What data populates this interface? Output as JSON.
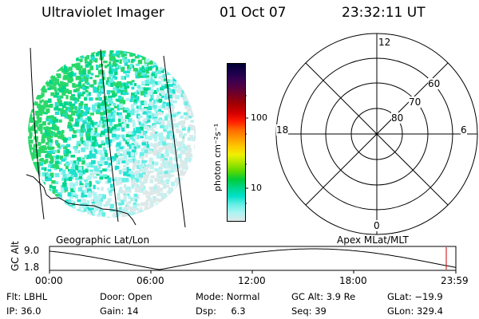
{
  "header": {
    "instrument": "Ultraviolet Imager",
    "date": "01 Oct 07",
    "time": "23:32:11 UT"
  },
  "colorbar": {
    "unit_label": "photon cm⁻²s⁻¹",
    "ticks": [
      "100",
      "10"
    ],
    "colors": [
      "#000033",
      "#1a004a",
      "#3a0050",
      "#5a003c",
      "#80001a",
      "#a80000",
      "#d60000",
      "#ff1e00",
      "#ff6a00",
      "#ff9a00",
      "#ffc800",
      "#f0f000",
      "#a8e600",
      "#5ad800",
      "#00cc3a",
      "#00d68a",
      "#00e0c8",
      "#66eee6",
      "#aaf4f2",
      "#dde8e8"
    ]
  },
  "polar_grid": {
    "mlt_labels": [
      "12",
      "18",
      "6",
      "0"
    ],
    "mlat_labels": [
      "60",
      "70",
      "80"
    ]
  },
  "panel_labels": {
    "left": "Geographic Lat/Lon",
    "right": "Apex MLat/MLT"
  },
  "altitude_plot": {
    "ylabel": "GC Alt",
    "y_ticks": [
      "9.0",
      "1.8"
    ],
    "x_ticks": [
      "00:00",
      "06:00",
      "12:00",
      "18:00",
      "23:59"
    ]
  },
  "status": {
    "flt_label": "Flt:",
    "flt_value": "LBHL",
    "door_label": "Door:",
    "door_value": "Open",
    "mode_label": "Mode:",
    "mode_value": "Normal",
    "gcalt_label": "GC Alt:",
    "gcalt_value": "3.9 Re",
    "glat_label": "GLat:",
    "glat_value": "−19.9",
    "ip_label": "IP:",
    "ip_value": "36.0",
    "gain_label": "Gain:",
    "gain_value": "14",
    "dsp_label": "Dsp:",
    "dsp_value": "6.3",
    "seq_label": "Seq:",
    "seq_value": "39",
    "glon_label": "GLon:",
    "glon_value": "329.4"
  }
}
